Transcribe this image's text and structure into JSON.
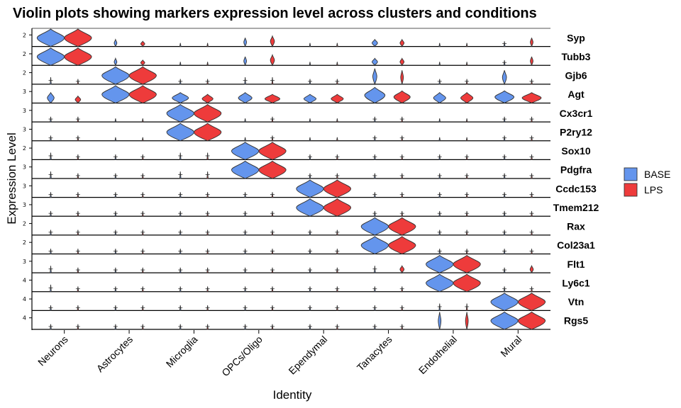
{
  "chart_data": {
    "type": "violin",
    "title": "Violin plots showing markers expression level across clusters and conditions",
    "xlabel": "Identity",
    "ylabel": "Expression Level",
    "categories": [
      "Neurons",
      "Astrocytes",
      "Microglia",
      "OPCs/Oligo",
      "Ependymal",
      "Tanacytes",
      "Endothelial",
      "Mural"
    ],
    "conditions": [
      {
        "name": "BASE",
        "color": "#6495ED"
      },
      {
        "name": "LPS",
        "color": "#EE3B3B"
      }
    ],
    "genes": [
      {
        "name": "Syp",
        "tick": "2",
        "max": [
          [
            1,
            1
          ],
          [
            0.4,
            0.3
          ],
          [
            0.2,
            0.2
          ],
          [
            0.5,
            0.6
          ],
          [
            0.2,
            0.2
          ],
          [
            0.4,
            0.4
          ],
          [
            0.2,
            0.2
          ],
          [
            0.3,
            0.5
          ]
        ],
        "width": [
          [
            1,
            1
          ],
          [
            0.1,
            0.15
          ],
          [
            0.05,
            0.05
          ],
          [
            0.1,
            0.15
          ],
          [
            0.05,
            0.05
          ],
          [
            0.2,
            0.15
          ],
          [
            0.05,
            0.05
          ],
          [
            0.05,
            0.1
          ]
        ]
      },
      {
        "name": "Tubb3",
        "tick": "2",
        "max": [
          [
            1,
            1
          ],
          [
            0.4,
            0.3
          ],
          [
            0.2,
            0.2
          ],
          [
            0.5,
            0.6
          ],
          [
            0.2,
            0.2
          ],
          [
            0.4,
            0.4
          ],
          [
            0.2,
            0.2
          ],
          [
            0.3,
            0.5
          ]
        ],
        "width": [
          [
            1,
            1
          ],
          [
            0.1,
            0.15
          ],
          [
            0.05,
            0.05
          ],
          [
            0.1,
            0.15
          ],
          [
            0.05,
            0.05
          ],
          [
            0.2,
            0.15
          ],
          [
            0.05,
            0.05
          ],
          [
            0.05,
            0.1
          ]
        ]
      },
      {
        "name": "Gjb6",
        "tick": "2",
        "max": [
          [
            0.4,
            0.3
          ],
          [
            1,
            1
          ],
          [
            0.3,
            0.3
          ],
          [
            0.4,
            0.4
          ],
          [
            0.3,
            0.3
          ],
          [
            0.9,
            0.8
          ],
          [
            0.3,
            0.3
          ],
          [
            0.8,
            0.3
          ]
        ],
        "width": [
          [
            0.05,
            0.05
          ],
          [
            1,
            1
          ],
          [
            0.05,
            0.05
          ],
          [
            0.05,
            0.05
          ],
          [
            0.05,
            0.05
          ],
          [
            0.15,
            0.1
          ],
          [
            0.05,
            0.05
          ],
          [
            0.15,
            0.05
          ]
        ]
      },
      {
        "name": "Agt",
        "tick": "3",
        "max": [
          [
            0.6,
            0.4
          ],
          [
            1,
            1
          ],
          [
            0.6,
            0.5
          ],
          [
            0.6,
            0.5
          ],
          [
            0.5,
            0.5
          ],
          [
            0.9,
            0.7
          ],
          [
            0.6,
            0.6
          ],
          [
            0.7,
            0.6
          ]
        ],
        "width": [
          [
            0.25,
            0.2
          ],
          [
            1,
            1
          ],
          [
            0.6,
            0.4
          ],
          [
            0.5,
            0.55
          ],
          [
            0.45,
            0.45
          ],
          [
            0.75,
            0.6
          ],
          [
            0.45,
            0.45
          ],
          [
            0.7,
            0.7
          ]
        ]
      },
      {
        "name": "Cx3cr1",
        "tick": "3",
        "max": [
          [
            0.3,
            0.3
          ],
          [
            0.2,
            0.2
          ],
          [
            1,
            1
          ],
          [
            0.2,
            0.3
          ],
          [
            0.2,
            0.2
          ],
          [
            0.3,
            0.3
          ],
          [
            0.2,
            0.2
          ],
          [
            0.3,
            0.3
          ]
        ],
        "width": [
          [
            0.03,
            0.03
          ],
          [
            0.03,
            0.03
          ],
          [
            1,
            1
          ],
          [
            0.03,
            0.03
          ],
          [
            0.03,
            0.03
          ],
          [
            0.03,
            0.03
          ],
          [
            0.03,
            0.03
          ],
          [
            0.03,
            0.03
          ]
        ]
      },
      {
        "name": "P2ry12",
        "tick": "3",
        "max": [
          [
            0.3,
            0.3
          ],
          [
            0.2,
            0.2
          ],
          [
            1,
            1
          ],
          [
            0.2,
            0.3
          ],
          [
            0.2,
            0.2
          ],
          [
            0.3,
            0.3
          ],
          [
            0.2,
            0.2
          ],
          [
            0.3,
            0.3
          ]
        ],
        "width": [
          [
            0.03,
            0.03
          ],
          [
            0.03,
            0.03
          ],
          [
            1,
            1
          ],
          [
            0.03,
            0.03
          ],
          [
            0.03,
            0.03
          ],
          [
            0.03,
            0.03
          ],
          [
            0.03,
            0.03
          ],
          [
            0.03,
            0.03
          ]
        ]
      },
      {
        "name": "Sox10",
        "tick": "2",
        "max": [
          [
            0.4,
            0.3
          ],
          [
            0.3,
            0.3
          ],
          [
            0.4,
            0.4
          ],
          [
            1,
            1
          ],
          [
            0.3,
            0.3
          ],
          [
            0.3,
            0.3
          ],
          [
            0.3,
            0.3
          ],
          [
            0.3,
            0.3
          ]
        ],
        "width": [
          [
            0.03,
            0.03
          ],
          [
            0.03,
            0.03
          ],
          [
            0.03,
            0.03
          ],
          [
            1,
            1
          ],
          [
            0.03,
            0.03
          ],
          [
            0.03,
            0.03
          ],
          [
            0.03,
            0.03
          ],
          [
            0.03,
            0.03
          ]
        ]
      },
      {
        "name": "Pdgfra",
        "tick": "3",
        "max": [
          [
            0.4,
            0.3
          ],
          [
            0.3,
            0.3
          ],
          [
            0.4,
            0.4
          ],
          [
            1,
            1
          ],
          [
            0.3,
            0.3
          ],
          [
            0.3,
            0.3
          ],
          [
            0.3,
            0.3
          ],
          [
            0.3,
            0.3
          ]
        ],
        "width": [
          [
            0.03,
            0.03
          ],
          [
            0.03,
            0.03
          ],
          [
            0.03,
            0.03
          ],
          [
            1,
            1
          ],
          [
            0.03,
            0.03
          ],
          [
            0.03,
            0.03
          ],
          [
            0.03,
            0.03
          ],
          [
            0.03,
            0.03
          ]
        ]
      },
      {
        "name": "Ccdc153",
        "tick": "3",
        "max": [
          [
            0.3,
            0.3
          ],
          [
            0.3,
            0.3
          ],
          [
            0.3,
            0.3
          ],
          [
            0.3,
            0.3
          ],
          [
            1,
            1
          ],
          [
            0.3,
            0.3
          ],
          [
            0.3,
            0.3
          ],
          [
            0.3,
            0.3
          ]
        ],
        "width": [
          [
            0.03,
            0.03
          ],
          [
            0.03,
            0.03
          ],
          [
            0.03,
            0.03
          ],
          [
            0.03,
            0.03
          ],
          [
            1,
            1
          ],
          [
            0.03,
            0.03
          ],
          [
            0.03,
            0.03
          ],
          [
            0.03,
            0.03
          ]
        ]
      },
      {
        "name": "Tmem212",
        "tick": "3",
        "max": [
          [
            0.3,
            0.3
          ],
          [
            0.3,
            0.3
          ],
          [
            0.3,
            0.3
          ],
          [
            0.3,
            0.3
          ],
          [
            1,
            1
          ],
          [
            0.3,
            0.3
          ],
          [
            0.3,
            0.3
          ],
          [
            0.3,
            0.3
          ]
        ],
        "width": [
          [
            0.03,
            0.03
          ],
          [
            0.03,
            0.03
          ],
          [
            0.03,
            0.03
          ],
          [
            0.03,
            0.03
          ],
          [
            1,
            1
          ],
          [
            0.03,
            0.03
          ],
          [
            0.03,
            0.03
          ],
          [
            0.03,
            0.03
          ]
        ]
      },
      {
        "name": "Rax",
        "tick": "2",
        "max": [
          [
            0.3,
            0.3
          ],
          [
            0.3,
            0.3
          ],
          [
            0.3,
            0.3
          ],
          [
            0.3,
            0.3
          ],
          [
            0.3,
            0.3
          ],
          [
            1,
            1
          ],
          [
            0.3,
            0.3
          ],
          [
            0.3,
            0.3
          ]
        ],
        "width": [
          [
            0.03,
            0.03
          ],
          [
            0.03,
            0.03
          ],
          [
            0.03,
            0.03
          ],
          [
            0.03,
            0.03
          ],
          [
            0.03,
            0.03
          ],
          [
            1,
            1
          ],
          [
            0.03,
            0.03
          ],
          [
            0.03,
            0.03
          ]
        ]
      },
      {
        "name": "Col23a1",
        "tick": "2",
        "max": [
          [
            0.3,
            0.3
          ],
          [
            0.3,
            0.3
          ],
          [
            0.3,
            0.3
          ],
          [
            0.3,
            0.3
          ],
          [
            0.3,
            0.3
          ],
          [
            1,
            1
          ],
          [
            0.3,
            0.3
          ],
          [
            0.3,
            0.3
          ]
        ],
        "width": [
          [
            0.03,
            0.03
          ],
          [
            0.03,
            0.03
          ],
          [
            0.03,
            0.03
          ],
          [
            0.03,
            0.03
          ],
          [
            0.03,
            0.03
          ],
          [
            1,
            1
          ],
          [
            0.03,
            0.03
          ],
          [
            0.03,
            0.03
          ]
        ]
      },
      {
        "name": "Flt1",
        "tick": "3",
        "max": [
          [
            0.4,
            0.3
          ],
          [
            0.3,
            0.3
          ],
          [
            0.3,
            0.3
          ],
          [
            0.3,
            0.3
          ],
          [
            0.3,
            0.3
          ],
          [
            0.4,
            0.4
          ],
          [
            1,
            1
          ],
          [
            0.3,
            0.4
          ]
        ],
        "width": [
          [
            0.03,
            0.03
          ],
          [
            0.03,
            0.03
          ],
          [
            0.03,
            0.03
          ],
          [
            0.03,
            0.03
          ],
          [
            0.03,
            0.03
          ],
          [
            0.03,
            0.15
          ],
          [
            1,
            1
          ],
          [
            0.03,
            0.12
          ]
        ]
      },
      {
        "name": "Ly6c1",
        "tick": "4",
        "max": [
          [
            0.4,
            0.3
          ],
          [
            0.3,
            0.3
          ],
          [
            0.3,
            0.3
          ],
          [
            0.3,
            0.3
          ],
          [
            0.3,
            0.3
          ],
          [
            0.3,
            0.3
          ],
          [
            1,
            1
          ],
          [
            0.3,
            0.3
          ]
        ],
        "width": [
          [
            0.03,
            0.03
          ],
          [
            0.03,
            0.03
          ],
          [
            0.03,
            0.03
          ],
          [
            0.03,
            0.03
          ],
          [
            0.03,
            0.03
          ],
          [
            0.03,
            0.03
          ],
          [
            1,
            1
          ],
          [
            0.03,
            0.03
          ]
        ]
      },
      {
        "name": "Vtn",
        "tick": "4",
        "max": [
          [
            0.3,
            0.3
          ],
          [
            0.3,
            0.3
          ],
          [
            0.3,
            0.3
          ],
          [
            0.3,
            0.3
          ],
          [
            0.3,
            0.3
          ],
          [
            0.3,
            0.3
          ],
          [
            0.4,
            0.4
          ],
          [
            1,
            1
          ]
        ],
        "width": [
          [
            0.03,
            0.03
          ],
          [
            0.03,
            0.03
          ],
          [
            0.03,
            0.03
          ],
          [
            0.03,
            0.03
          ],
          [
            0.03,
            0.03
          ],
          [
            0.03,
            0.03
          ],
          [
            0.03,
            0.03
          ],
          [
            1,
            1
          ]
        ]
      },
      {
        "name": "Rgs5",
        "tick": "4",
        "max": [
          [
            0.3,
            0.3
          ],
          [
            0.3,
            0.3
          ],
          [
            0.3,
            0.3
          ],
          [
            0.3,
            0.3
          ],
          [
            0.3,
            0.3
          ],
          [
            0.3,
            0.3
          ],
          [
            1,
            1
          ],
          [
            1,
            1
          ]
        ],
        "width": [
          [
            0.03,
            0.03
          ],
          [
            0.03,
            0.03
          ],
          [
            0.03,
            0.03
          ],
          [
            0.03,
            0.03
          ],
          [
            0.03,
            0.03
          ],
          [
            0.03,
            0.03
          ],
          [
            0.1,
            0.1
          ],
          [
            1,
            1
          ]
        ]
      }
    ],
    "legend_position": "right"
  }
}
